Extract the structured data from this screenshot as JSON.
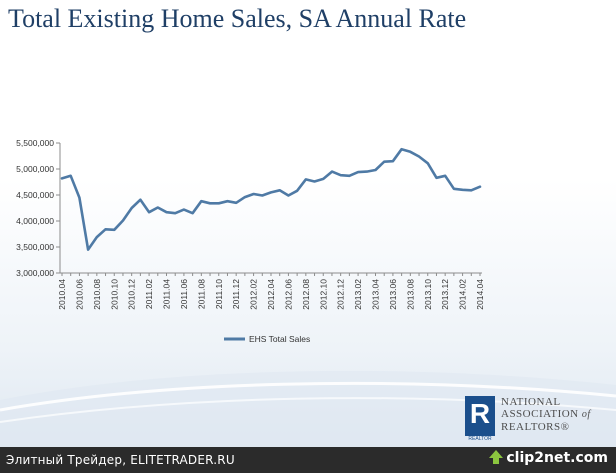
{
  "title": "Total Existing Home Sales, SA Annual Rate",
  "chart_data": {
    "type": "line",
    "title": "Total Existing Home Sales, SA Annual Rate",
    "ylim": [
      3000000,
      5500000
    ],
    "yticks": [
      3000000,
      3500000,
      4000000,
      4500000,
      5000000,
      5500000
    ],
    "ytick_labels": [
      "3,000,000",
      "3,500,000",
      "4,000,000",
      "4,500,000",
      "5,000,000",
      "5,500,000"
    ],
    "xtick_labels": [
      "2010.04",
      "2010.06",
      "2010.08",
      "2010.10",
      "2010.12",
      "2011.02",
      "2011.04",
      "2011.06",
      "2011.08",
      "2011.10",
      "2011.12",
      "2012.02",
      "2012.04",
      "2012.06",
      "2012.08",
      "2012.10",
      "2012.12",
      "2013.02",
      "2013.04",
      "2013.06",
      "2013.08",
      "2013.10",
      "2013.12",
      "2014.02",
      "2014.04"
    ],
    "series": [
      {
        "name": "EHS Total Sales",
        "color": "#4f7aa5",
        "x": [
          "2010.04",
          "2010.05",
          "2010.06",
          "2010.07",
          "2010.08",
          "2010.09",
          "2010.10",
          "2010.11",
          "2010.12",
          "2011.01",
          "2011.02",
          "2011.03",
          "2011.04",
          "2011.05",
          "2011.06",
          "2011.07",
          "2011.08",
          "2011.09",
          "2011.10",
          "2011.11",
          "2011.12",
          "2012.01",
          "2012.02",
          "2012.03",
          "2012.04",
          "2012.05",
          "2012.06",
          "2012.07",
          "2012.08",
          "2012.09",
          "2012.10",
          "2012.11",
          "2012.12",
          "2013.01",
          "2013.02",
          "2013.03",
          "2013.04",
          "2013.05",
          "2013.06",
          "2013.07",
          "2013.08",
          "2013.09",
          "2013.10",
          "2013.11",
          "2013.12",
          "2014.01",
          "2014.02",
          "2014.03",
          "2014.04"
        ],
        "values": [
          4820000,
          4870000,
          4450000,
          3450000,
          3690000,
          3840000,
          3830000,
          4010000,
          4250000,
          4410000,
          4170000,
          4260000,
          4170000,
          4150000,
          4220000,
          4150000,
          4380000,
          4340000,
          4340000,
          4380000,
          4350000,
          4460000,
          4520000,
          4490000,
          4550000,
          4590000,
          4490000,
          4580000,
          4800000,
          4760000,
          4810000,
          4950000,
          4880000,
          4870000,
          4940000,
          4950000,
          4980000,
          5140000,
          5150000,
          5380000,
          5330000,
          5240000,
          5110000,
          4830000,
          4870000,
          4620000,
          4600000,
          4590000,
          4660000
        ]
      }
    ],
    "legend": "bottom"
  },
  "branding": {
    "org_line1": "NATIONAL",
    "org_line2": "ASSOCIATION",
    "org_of": "of",
    "org_line3": "REALTORS",
    "org_reg": "®",
    "logo_letter": "R",
    "logo_caption": "REALTOR"
  },
  "footer": {
    "caption": "Элитный Трейдер, ELITETRADER.RU",
    "clip_brand": "clip2net.com"
  }
}
